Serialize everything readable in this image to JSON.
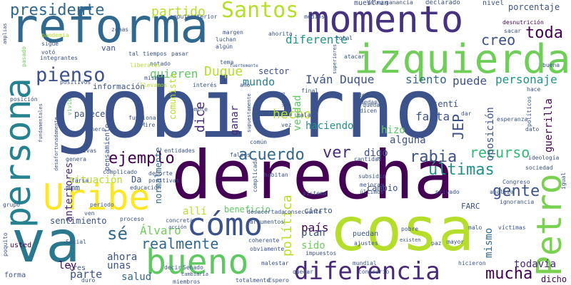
{
  "words": [
    {
      "text": "gobierno",
      "color": "#3b528b"
    },
    {
      "text": "derecha",
      "color": "#440154"
    },
    {
      "text": "cosa",
      "color": "#b5de2b"
    },
    {
      "text": "reforma",
      "color": "#31688e"
    },
    {
      "text": "va",
      "color": "#2a788e"
    },
    {
      "text": "izquierda",
      "color": "#6ece58"
    },
    {
      "text": "momento",
      "color": "#46327e"
    },
    {
      "text": "persona",
      "color": "#26828e"
    },
    {
      "text": "Petro",
      "color": "#7ad151"
    },
    {
      "text": "bueno",
      "color": "#5ec962"
    },
    {
      "text": "Uribe",
      "color": "#fde725"
    },
    {
      "text": "cómo",
      "color": "#3b528b"
    },
    {
      "text": "diferencia",
      "color": "#482878"
    },
    {
      "text": "Santos",
      "color": "#b5de2b"
    },
    {
      "text": "presidente",
      "color": "#31688e"
    },
    {
      "text": "pienso",
      "color": "#3b528b"
    },
    {
      "text": "partido",
      "color": "#b5de2b"
    },
    {
      "text": "ejemplo",
      "color": "#440154"
    },
    {
      "text": "acuerdo",
      "color": "#31688e"
    },
    {
      "text": "ver",
      "color": "#472d7b"
    },
    {
      "text": "rabia",
      "color": "#3b528b"
    },
    {
      "text": "recurso",
      "color": "#35b779"
    },
    {
      "text": "últimas",
      "color": "#21918c"
    },
    {
      "text": "gente",
      "color": "#3b528b"
    },
    {
      "text": "toda",
      "color": "#440154"
    },
    {
      "text": "creo",
      "color": "#3b528b"
    },
    {
      "text": "diferente",
      "color": "#21918c"
    },
    {
      "text": "Iván Duque",
      "color": "#3b528b"
    },
    {
      "text": "Duque",
      "color": "#b5de2b"
    },
    {
      "text": "mucha",
      "color": "#440154"
    },
    {
      "text": "realmente",
      "color": "#31688e"
    },
    {
      "text": "sé",
      "color": "#31688e"
    },
    {
      "text": "Álvaro",
      "color": "#6ece58"
    },
    {
      "text": "política",
      "color": "#b5de2b"
    },
    {
      "text": "quieren",
      "color": "#5ec962"
    },
    {
      "text": "mundo",
      "color": "#26828e"
    },
    {
      "text": "siento",
      "color": "#31688e"
    },
    {
      "text": "puede",
      "color": "#3b528b"
    },
    {
      "text": "personaje",
      "color": "#21918c"
    },
    {
      "text": "JEP",
      "color": "#3b528b"
    },
    {
      "text": "hecho",
      "color": "#b5de2b"
    },
    {
      "text": "falta",
      "color": "#3b528b"
    },
    {
      "text": "haciendo",
      "color": "#21918c"
    },
    {
      "text": "hizo",
      "color": "#5ec962"
    },
    {
      "text": "dice",
      "color": "#482878"
    },
    {
      "text": "ganar",
      "color": "#482878"
    },
    {
      "text": "digo",
      "color": "#3b528b"
    },
    {
      "text": "alguna",
      "color": "#3b528b"
    },
    {
      "text": "país",
      "color": "#440154"
    },
    {
      "text": "plan",
      "color": "#3b528b"
    },
    {
      "text": "sido",
      "color": "#6ece58"
    },
    {
      "text": "mismo",
      "color": "#31688e"
    },
    {
      "text": "allí",
      "color": "#b5de2b"
    },
    {
      "text": "beneficio",
      "color": "#5ec962"
    },
    {
      "text": "parte",
      "color": "#3b528b"
    },
    {
      "text": "ahora",
      "color": "#3b528b"
    },
    {
      "text": "unas",
      "color": "#3b528b"
    },
    {
      "text": "salud",
      "color": "#31688e"
    },
    {
      "text": "ley",
      "color": "#440154"
    },
    {
      "text": "todavía",
      "color": "#482878"
    },
    {
      "text": "dicho",
      "color": "#440154"
    },
    {
      "text": "guerrilla",
      "color": "#440154"
    },
    {
      "text": "porcentaje",
      "color": "#3b528b"
    },
    {
      "text": "sector",
      "color": "#3b528b"
    },
    {
      "text": "cambio",
      "color": "#3b528b"
    },
    {
      "text": "anteriores",
      "color": "#482878"
    },
    {
      "text": "oposición",
      "color": "#3b528b"
    },
    {
      "text": "verdad",
      "color": "#5ec962"
    },
    {
      "text": "situación",
      "color": "#b5de2b"
    },
    {
      "text": "normalmente",
      "color": "#31688e"
    },
    {
      "text": "comunista",
      "color": "#b5de2b"
    },
    {
      "text": "sentimiento",
      "color": "#3b528b"
    },
    {
      "text": "parece",
      "color": "#3b528b"
    },
    {
      "text": "información",
      "color": "#3b528b"
    },
    {
      "text": "van",
      "color": "#3b528b"
    },
    {
      "text": "puedan",
      "color": "#3b528b"
    },
    {
      "text": "Da",
      "color": "#3b528b"
    },
    {
      "text": "mmm",
      "color": "#3b528b"
    },
    {
      "text": "sentí",
      "color": "#3b528b"
    },
    {
      "text": "FARC",
      "color": "#3b528b"
    },
    {
      "text": "cierto",
      "color": "#3b528b"
    },
    {
      "text": "usted",
      "color": "#440154"
    },
    {
      "text": "tres",
      "color": "#3b528b"
    },
    {
      "text": "forma",
      "color": "#3b528b"
    },
    {
      "text": "medios",
      "color": "#3b528b"
    },
    {
      "text": "muestran",
      "color": "#3b528b"
    },
    {
      "text": "declarado",
      "color": "#3b528b"
    },
    {
      "text": "nivel",
      "color": "#3b528b"
    },
    {
      "text": "ganancia",
      "color": "#3b528b"
    },
    {
      "text": "Vélez",
      "color": "#3b528b"
    },
    {
      "text": "desnutrición",
      "color": "#440154"
    },
    {
      "text": "buena",
      "color": "#3b528b"
    },
    {
      "text": "sacar",
      "color": "#3b528b"
    },
    {
      "text": "atacar",
      "color": "#3b528b"
    },
    {
      "text": "total",
      "color": "#3b528b"
    },
    {
      "text": "margen",
      "color": "#3b528b"
    },
    {
      "text": "ahorita",
      "color": "#3b528b"
    },
    {
      "text": "luchan",
      "color": "#3b528b"
    },
    {
      "text": "algún",
      "color": "#3b528b"
    },
    {
      "text": "pandemia",
      "color": "#b5de2b"
    },
    {
      "text": "sigue",
      "color": "#3b528b"
    },
    {
      "text": "votó",
      "color": "#3b528b"
    },
    {
      "text": "pasado",
      "color": "#6ece58"
    },
    {
      "text": "amplias",
      "color": "#3b528b"
    },
    {
      "text": "tiempos",
      "color": "#3b528b"
    },
    {
      "text": "pasar",
      "color": "#3b528b"
    },
    {
      "text": "llevamos",
      "color": "#b5de2b"
    },
    {
      "text": "notado",
      "color": "#3b528b"
    },
    {
      "text": "liberales",
      "color": "#b5de2b"
    },
    {
      "text": "positivos",
      "color": "#3b528b"
    },
    {
      "text": "mismas",
      "color": "#3b528b"
    },
    {
      "text": "interés",
      "color": "#3b528b"
    },
    {
      "text": "año",
      "color": "#3b528b"
    },
    {
      "text": "final",
      "color": "#3b528b"
    },
    {
      "text": "hace",
      "color": "#3b528b"
    },
    {
      "text": "esperanza",
      "color": "#3b528b"
    },
    {
      "text": "quedan",
      "color": "#3b528b"
    },
    {
      "text": "dicen",
      "color": "#3b528b"
    },
    {
      "text": "vivió",
      "color": "#5ec962"
    },
    {
      "text": "posición",
      "color": "#3b528b"
    },
    {
      "text": "funciona",
      "color": "#3b528b"
    },
    {
      "text": "Mire",
      "color": "#3b528b"
    },
    {
      "text": "dinero",
      "color": "#3b528b"
    },
    {
      "text": "nombre",
      "color": "#3b528b"
    },
    {
      "text": "malas",
      "color": "#3b528b"
    },
    {
      "text": "vez",
      "color": "#3b528b"
    },
    {
      "text": "dar",
      "color": "#3b528b"
    },
    {
      "text": "políticos",
      "color": "#3b528b"
    },
    {
      "text": "dato",
      "color": "#3b528b"
    },
    {
      "text": "negativas",
      "color": "#3b528b"
    },
    {
      "text": "genera",
      "color": "#3b528b"
    },
    {
      "text": "entidades",
      "color": "#3b528b"
    },
    {
      "text": "común",
      "color": "#3b528b"
    },
    {
      "text": "falsos",
      "color": "#3b528b"
    },
    {
      "text": "cantidad",
      "color": "#3b528b"
    },
    {
      "text": "ideología",
      "color": "#3b528b"
    },
    {
      "text": "sociedad",
      "color": "#3b528b"
    },
    {
      "text": "igual",
      "color": "#3b528b"
    },
    {
      "text": "complicado",
      "color": "#3b528b"
    },
    {
      "text": "deporte",
      "color": "#3b528b"
    },
    {
      "text": "positivas",
      "color": "#3b528b"
    },
    {
      "text": "educación",
      "color": "#3b528b"
    },
    {
      "text": "habitan",
      "color": "#3b528b"
    },
    {
      "text": "subsidio",
      "color": "#3b528b"
    },
    {
      "text": "mejoras",
      "color": "#3b528b"
    },
    {
      "text": "últimos",
      "color": "#3b528b"
    },
    {
      "text": "sistema",
      "color": "#3b528b"
    },
    {
      "text": "privado",
      "color": "#3b528b"
    },
    {
      "text": "Congreso",
      "color": "#3b528b"
    },
    {
      "text": "analiza",
      "color": "#3b528b"
    },
    {
      "text": "ignorancia",
      "color": "#3b528b"
    },
    {
      "text": "grupo",
      "color": "#3b528b"
    },
    {
      "text": "periodo",
      "color": "#3b528b"
    },
    {
      "text": "ven",
      "color": "#3b528b"
    },
    {
      "text": "proceso",
      "color": "#3b528b"
    },
    {
      "text": "concretar",
      "color": "#3b528b"
    },
    {
      "text": "acción",
      "color": "#3b528b"
    },
    {
      "text": "desacertada",
      "color": "#3b528b"
    },
    {
      "text": "consecuente",
      "color": "#3b528b"
    },
    {
      "text": "argumentos",
      "color": "#3b528b"
    },
    {
      "text": "pobre",
      "color": "#3b528b"
    },
    {
      "text": "malo",
      "color": "#3b528b"
    },
    {
      "text": "víctimas",
      "color": "#3b528b"
    },
    {
      "text": "existen",
      "color": "#3b528b"
    },
    {
      "text": "coherente",
      "color": "#3b528b"
    },
    {
      "text": "ajustes",
      "color": "#3b528b"
    },
    {
      "text": "paz",
      "color": "#3b528b"
    },
    {
      "text": "mayor",
      "color": "#3b528b"
    },
    {
      "text": "obviamente",
      "color": "#3b528b"
    },
    {
      "text": "impuestos",
      "color": "#3b528b"
    },
    {
      "text": "Social",
      "color": "#3b528b"
    },
    {
      "text": "poquito",
      "color": "#3b528b"
    },
    {
      "text": "duro",
      "color": "#3b528b"
    },
    {
      "text": "decir",
      "color": "#3b528b"
    },
    {
      "text": "Senado",
      "color": "#3b528b"
    },
    {
      "text": "cambiaría",
      "color": "#3b528b"
    },
    {
      "text": "miembros",
      "color": "#3b528b"
    },
    {
      "text": "totalmente",
      "color": "#3b528b"
    },
    {
      "text": "Espero",
      "color": "#3b528b"
    },
    {
      "text": "quedar",
      "color": "#3b528b"
    },
    {
      "text": "malestar",
      "color": "#3b528b"
    },
    {
      "text": "mundial",
      "color": "#3b528b"
    },
    {
      "text": "contrario",
      "color": "#3b528b"
    },
    {
      "text": "hicieron",
      "color": "#3b528b"
    },
    {
      "text": "complicada",
      "color": "#3b528b"
    },
    {
      "text": "farsa",
      "color": "#3b528b"
    },
    {
      "text": "fundamentales",
      "color": "#3b528b"
    },
    {
      "text": "desafortunadamente",
      "color": "#3b528b"
    },
    {
      "text": "integrantes",
      "color": "#3b528b"
    },
    {
      "text": "zonas",
      "color": "#3b528b"
    },
    {
      "text": "tal",
      "color": "#3b528b"
    },
    {
      "text": "anterior",
      "color": "#3b528b"
    },
    {
      "text": "empuje",
      "color": "#3b528b"
    },
    {
      "text": "tema",
      "color": "#3b528b"
    },
    {
      "text": "fuertemente",
      "color": "#3b528b"
    },
    {
      "text": "superiores",
      "color": "#3b528b"
    },
    {
      "text": "supuestamente",
      "color": "#3b528b"
    },
    {
      "text": "venos",
      "color": "#3b528b"
    },
    {
      "text": "den",
      "color": "#3b528b"
    },
    {
      "text": "queda",
      "color": "#3b528b"
    },
    {
      "text": "pensamiento",
      "color": "#3b528b"
    }
  ]
}
